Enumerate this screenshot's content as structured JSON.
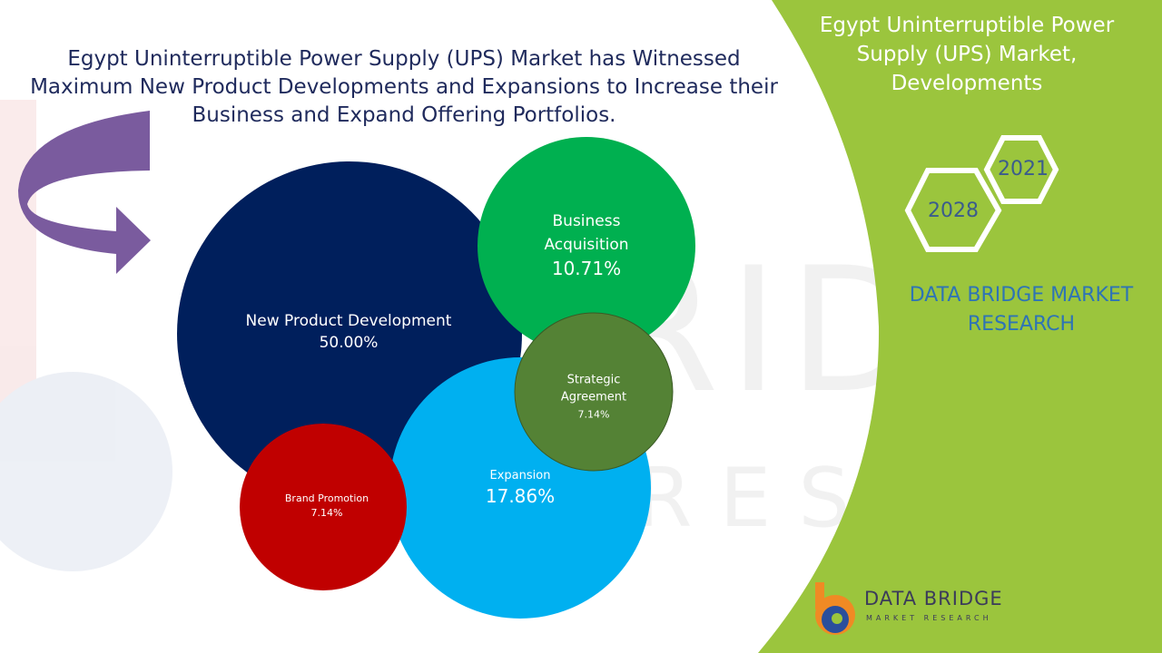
{
  "headline": "Egypt Uninterruptible Power Supply (UPS) Market has Witnessed Maximum New Product Developments and Expansions to Increase their Business and Expand Offering Portfolios.",
  "side_title": "Egypt Uninterruptible Power Supply (UPS) Market, Developments",
  "years": {
    "start": "2021",
    "end": "2028"
  },
  "brand": "DATA BRIDGE MARKET RESEARCH",
  "logo": {
    "name": "DATA BRIDGE",
    "tagline": "MARKET RESEARCH"
  },
  "colors": {
    "green_panel": "#9bc53d",
    "headline": "#1f2a5c",
    "arrow": "#7a5b9e"
  },
  "chart_data": {
    "type": "bubble",
    "series": [
      {
        "name": "New Product Development",
        "value": 50.0,
        "label": "50.00%",
        "color": "#001f5c"
      },
      {
        "name": "Business Acquisition",
        "value": 10.71,
        "label": "10.71%",
        "color": "#00b050"
      },
      {
        "name": "Expansion",
        "value": 17.86,
        "label": "17.86%",
        "color": "#00b0f0"
      },
      {
        "name": "Brand Promotion",
        "value": 7.14,
        "label": "7.14%",
        "color": "#c00000"
      },
      {
        "name": "Strategic Agreement",
        "value": 7.14,
        "label": "7.14%",
        "color": "#548235"
      }
    ]
  }
}
